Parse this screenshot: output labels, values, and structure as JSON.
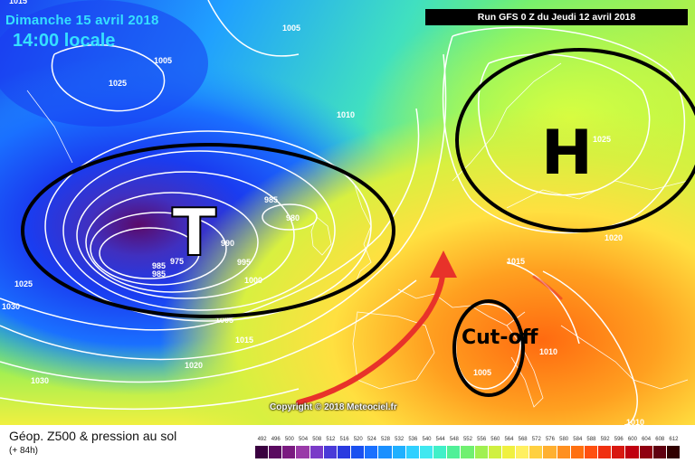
{
  "header": {
    "date_line": "Dimanche 15 avril 2018",
    "time_line": "14:00 locale",
    "run_info": "Run GFS 0 Z du Jeudi 12 avril 2018"
  },
  "copyright": "Copyright © 2018 Meteociel.fr",
  "legend": {
    "title": "Géop. Z500 & pression au sol",
    "subtitle": "(+ 84h)",
    "scale_values": [
      492,
      496,
      500,
      504,
      508,
      512,
      516,
      520,
      524,
      528,
      532,
      536,
      540,
      544,
      548,
      552,
      556,
      560,
      564,
      568,
      572,
      576,
      580,
      584,
      588,
      592,
      596,
      600,
      604,
      608,
      612
    ],
    "scale_colors": [
      "#3a0040",
      "#5a0a60",
      "#7a1a80",
      "#9a3aa8",
      "#7a3ac8",
      "#4a3ad8",
      "#2a3ae0",
      "#1a50f0",
      "#1a70ff",
      "#1a90ff",
      "#20b0ff",
      "#30d0ff",
      "#40e8f0",
      "#40f0c8",
      "#50f098",
      "#70f070",
      "#a0f050",
      "#d0f040",
      "#f0f040",
      "#fff060",
      "#ffd040",
      "#ffb030",
      "#ff9020",
      "#ff7010",
      "#ff5010",
      "#f03010",
      "#d81810",
      "#c00010",
      "#900010",
      "#600010",
      "#300000"
    ]
  },
  "systems": {
    "low_label": "T",
    "high_label": "H",
    "cutoff_label": "Cut-off"
  },
  "isobar_labels": [
    "1005",
    "1005",
    "1025",
    "1010",
    "985",
    "980",
    "990",
    "995",
    "1000",
    "975",
    "985",
    "985",
    "1005",
    "1015",
    "1025",
    "1030",
    "1020",
    "1030",
    "1015",
    "1025",
    "1020",
    "1010",
    "1005",
    "1010",
    "1015"
  ],
  "colors": {
    "system_outline": "#000000",
    "isobar": "#ffffff",
    "arrow": "#e8322a",
    "label": "#35e0ff"
  }
}
